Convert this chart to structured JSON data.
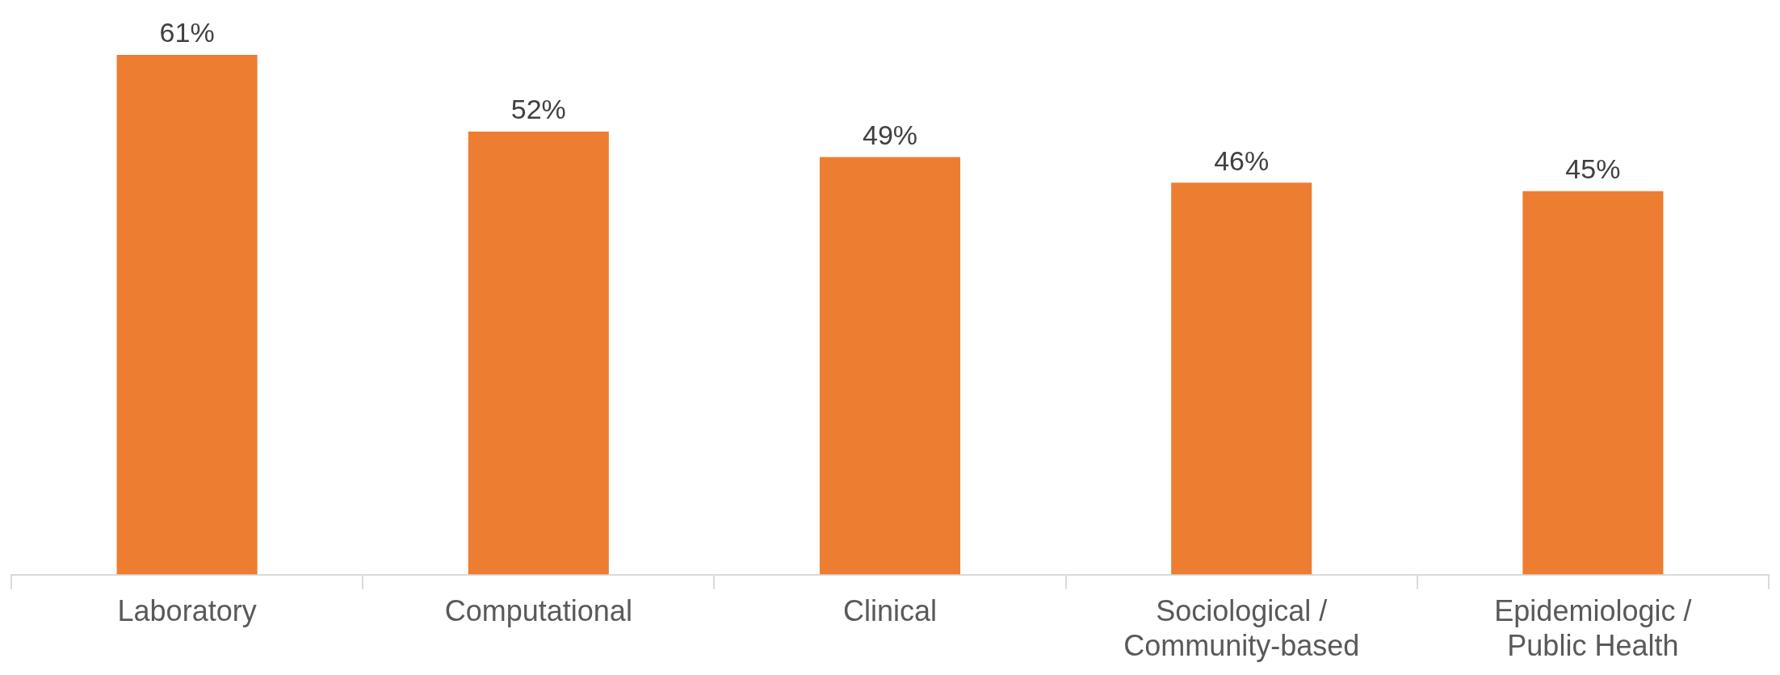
{
  "chart_data": {
    "type": "bar",
    "categories": [
      "Laboratory",
      "Computational",
      "Clinical",
      "Sociological /\nCommunity-based",
      "Epidemiologic /\nPublic Health"
    ],
    "values": [
      61,
      52,
      49,
      46,
      45
    ],
    "color": "#ed7d31",
    "value_labels": [
      "61%",
      "52%",
      "49%",
      "46%",
      "45%"
    ],
    "grid": false,
    "legend": false
  }
}
